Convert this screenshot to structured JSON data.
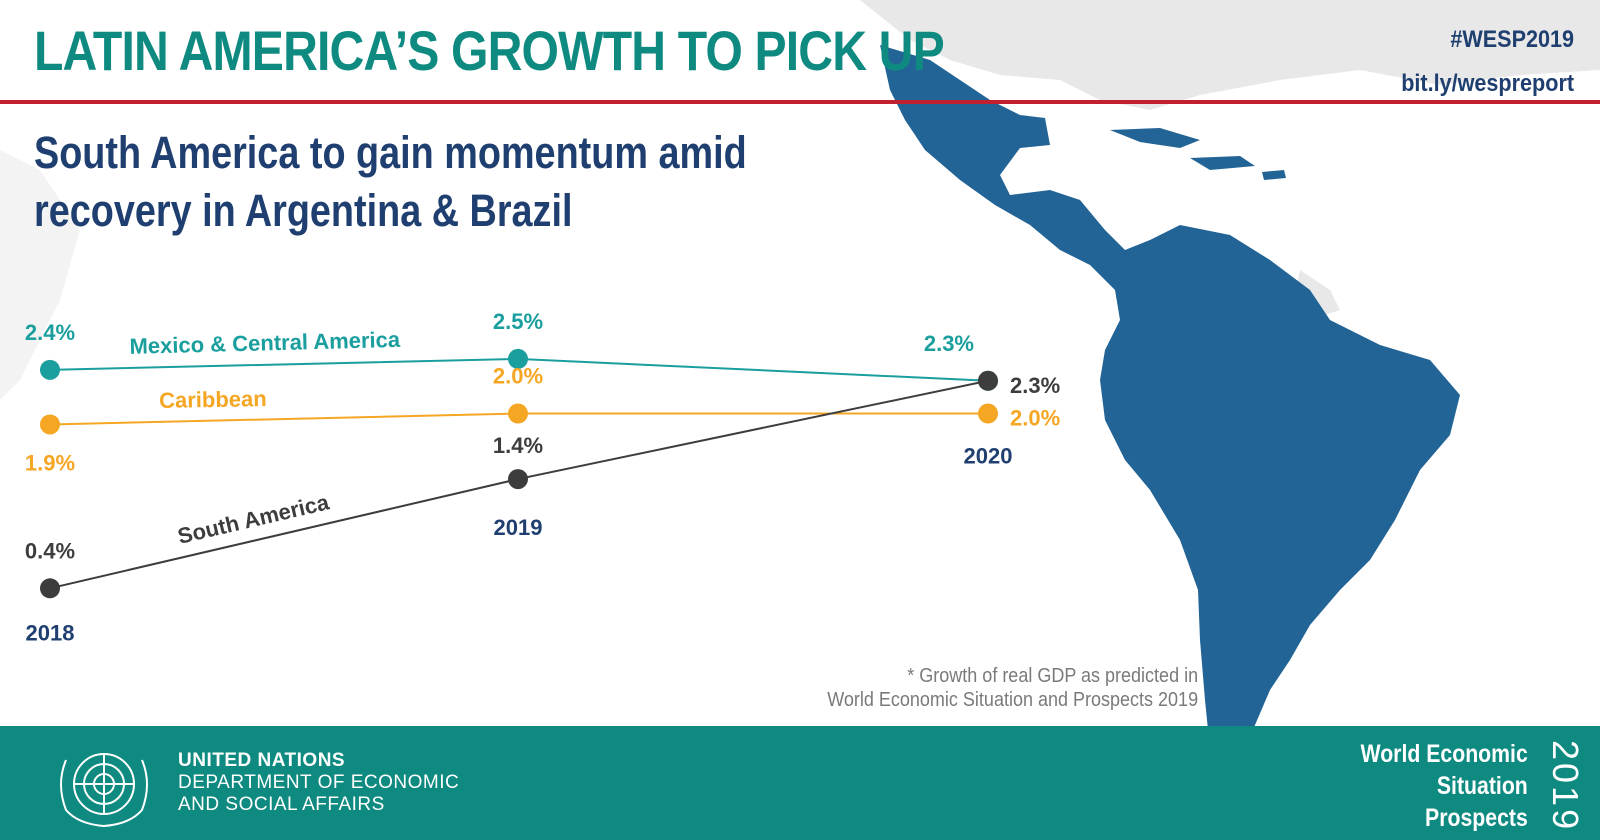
{
  "header": {
    "title": "LATIN AMERICA’S GROWTH TO PICK UP",
    "hashtag": "#WESP2019",
    "link": "bit.ly/wespreport",
    "subtitle_line1": "South America to gain momentum amid",
    "subtitle_line2": "recovery in Argentina & Brazil"
  },
  "colors": {
    "teal": "#1a9e9e",
    "orange": "#f5a623",
    "dark": "#3d3d3d",
    "navy": "#1f3f70",
    "accent_red": "#c0202f",
    "footer_teal": "#0e8a80",
    "map_blue": "#236496",
    "map_grey": "#e6e6e6"
  },
  "chart_data": {
    "type": "line",
    "x": [
      "2018",
      "2019",
      "2020"
    ],
    "series": [
      {
        "name": "Mexico & Central America",
        "values": [
          2.4,
          2.5,
          2.3
        ],
        "labels": [
          "2.4%",
          "2.5%",
          "2.3%"
        ],
        "color": "#1a9e9e"
      },
      {
        "name": "Caribbean",
        "values": [
          1.9,
          2.0,
          2.0
        ],
        "labels": [
          "1.9%",
          "2.0%",
          "2.0%"
        ],
        "color": "#f5a623"
      },
      {
        "name": "South America",
        "values": [
          0.4,
          1.4,
          2.3
        ],
        "labels": [
          "0.4%",
          "1.4%",
          "2.3%"
        ],
        "color": "#3d3d3d"
      }
    ],
    "ylabel": "",
    "xlabel": "",
    "ylim": [
      0,
      2.6
    ],
    "grid": false,
    "legend": "inline labels on lines"
  },
  "note": {
    "line1": "* Growth of real GDP as predicted in",
    "line2": "World Economic Situation and Prospects 2019"
  },
  "footer": {
    "org_line1": "UNITED NATIONS",
    "org_line2": "DEPARTMENT OF ECONOMIC",
    "org_line3": "AND SOCIAL AFFAIRS",
    "report_line1": "World Economic",
    "report_line2": "Situation",
    "report_line3": "Prospects",
    "report_year": "2019"
  }
}
